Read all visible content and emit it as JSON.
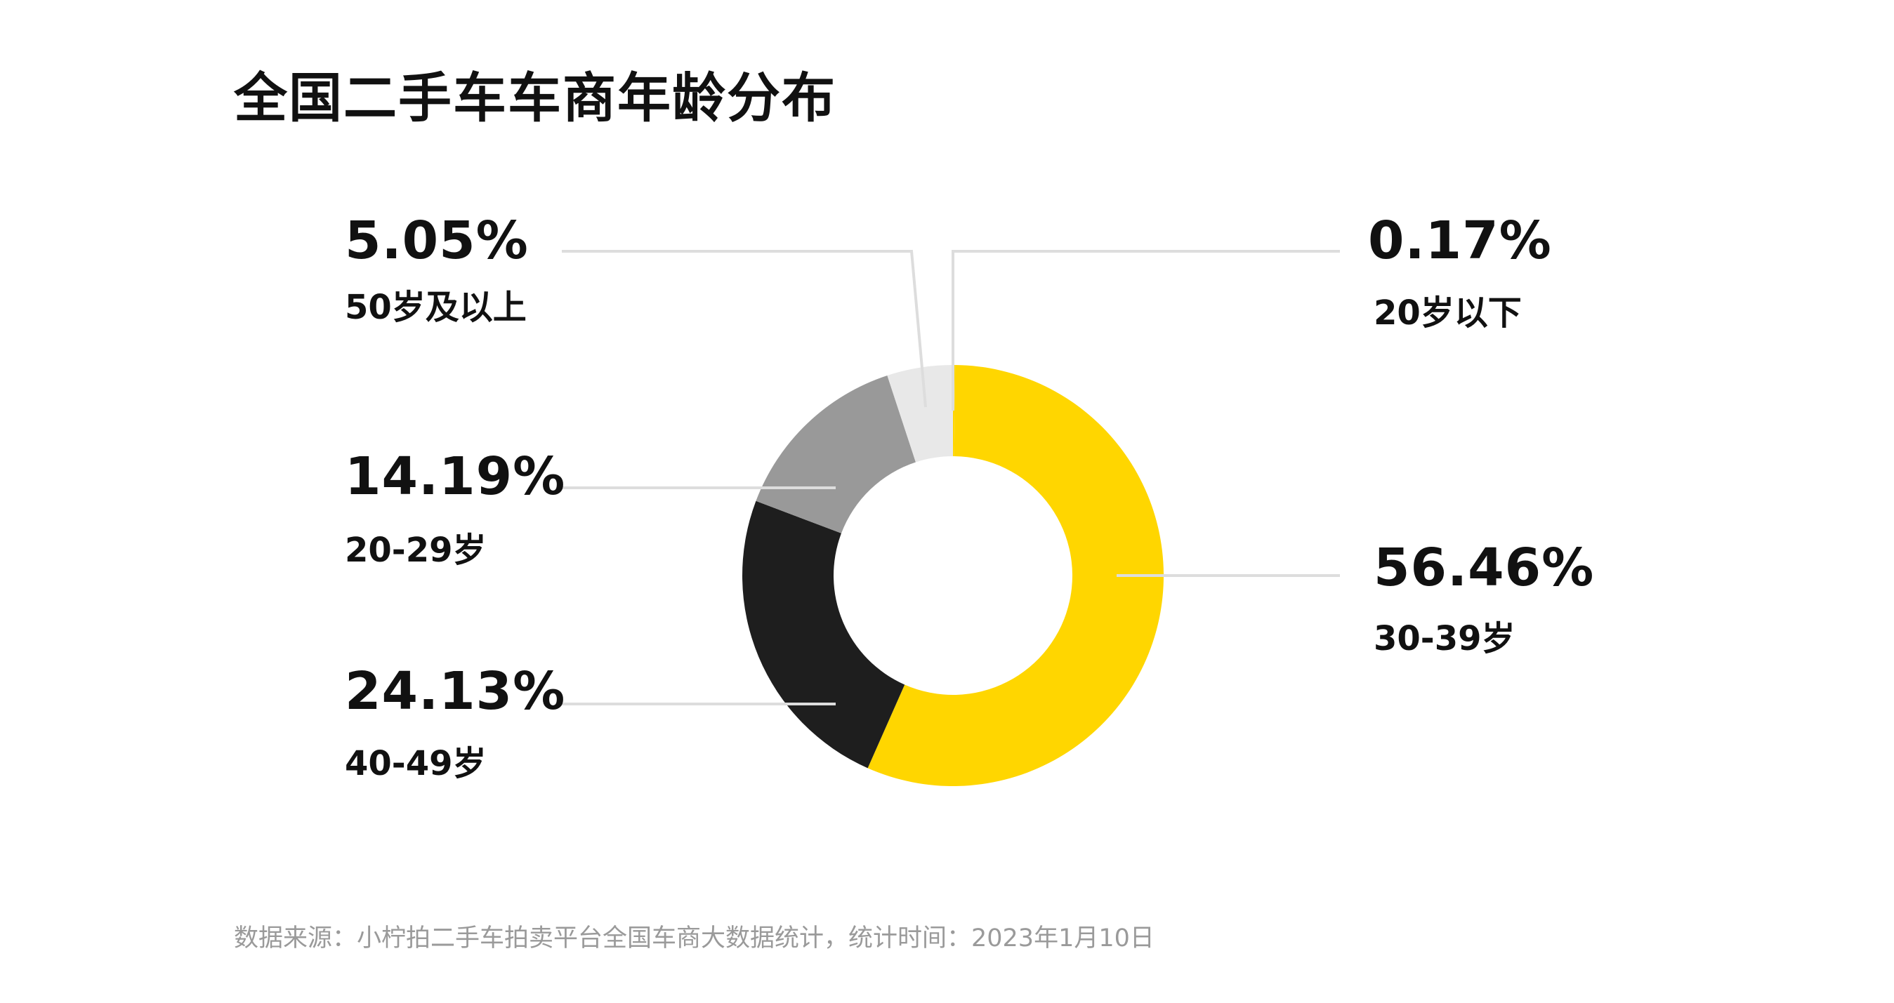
{
  "page_title": "全国二手车车商年龄分布",
  "source_note": "数据来源：小柠拍二手车拍卖平台全国车商大数据统计，统计时间：2023年1月10日",
  "chart_data": {
    "type": "pie",
    "subtype": "donut",
    "title": "全国二手车车商年龄分布",
    "categories": [
      "20岁以下",
      "30-39岁",
      "40-49岁",
      "20-29岁",
      "50岁及以上"
    ],
    "values": [
      0.17,
      56.46,
      24.13,
      14.19,
      5.05
    ],
    "labels": [
      "0.17%",
      "56.46%",
      "24.13%",
      "14.19%",
      "5.05%"
    ],
    "colors": [
      "#FFD600",
      "#FFD600",
      "#1E1E1E",
      "#999999",
      "#E8E8E8"
    ],
    "unit": "%",
    "legend": "none",
    "leader_line_color": "#DDDDDD"
  }
}
